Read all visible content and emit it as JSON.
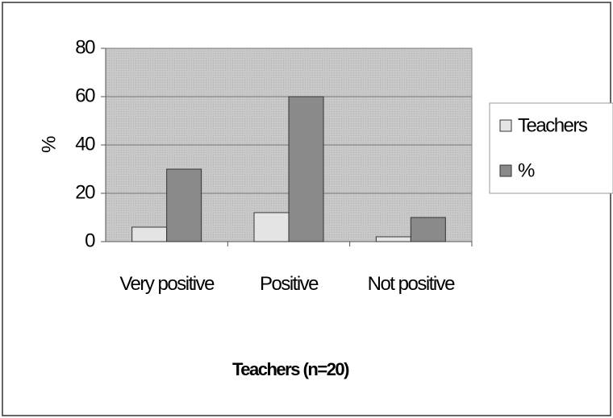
{
  "chart_data": {
    "type": "bar",
    "categories": [
      "Very positive",
      "Positive",
      "Not positive"
    ],
    "series": [
      {
        "name": "Teachers",
        "color": "#e4e4e4",
        "values": [
          6,
          12,
          2
        ]
      },
      {
        "name": "%",
        "color": "#8a8a8a",
        "values": [
          30,
          60,
          10
        ]
      }
    ],
    "xlabel": "Teachers (n=20)",
    "ylabel": "%",
    "ylim": [
      0,
      80
    ],
    "yticks": [
      0,
      20,
      40,
      60,
      80
    ],
    "grid": true,
    "legend": "right"
  }
}
